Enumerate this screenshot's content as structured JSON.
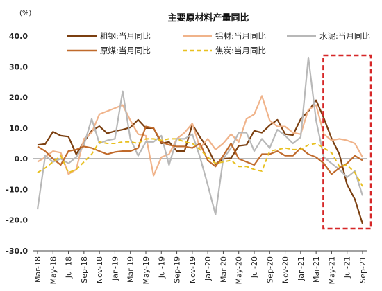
{
  "chart_data": {
    "type": "line",
    "title": "主要原材料产量同比",
    "ylabel": "(%)",
    "xlabel": "",
    "ylim": [
      -30,
      40
    ],
    "yticks": [
      "40.0",
      "30.0",
      "20.0",
      "10.0",
      "0.0",
      "-10.0",
      "-20.0",
      "-30.0"
    ],
    "ytick_values": [
      40,
      30,
      20,
      10,
      0,
      -10,
      -20,
      -30
    ],
    "x": [
      "Mar-18",
      "Apr-18",
      "May-18",
      "Jun-18",
      "Jul-18",
      "Aug-18",
      "Sep-18",
      "Oct-18",
      "Nov-18",
      "Dec-18",
      "Jan-19",
      "Feb-19",
      "Mar-19",
      "Apr-19",
      "May-19",
      "Jun-19",
      "Jul-19",
      "Aug-19",
      "Sep-19",
      "Oct-19",
      "Nov-19",
      "Dec-19",
      "Jan-20",
      "Feb-20",
      "Mar-20",
      "Apr-20",
      "May-20",
      "Jun-20",
      "Jul-20",
      "Aug-20",
      "Sep-20",
      "Oct-20",
      "Nov-20",
      "Dec-20",
      "Jan-21",
      "Feb-21",
      "Mar-21",
      "Apr-21",
      "May-21",
      "Jun-21",
      "Jul-21",
      "Aug-21",
      "Sep-21"
    ],
    "xtick_labels": [
      "Mar-18",
      "May-18",
      "Jul-18",
      "Sep-18",
      "Nov-18",
      "Jan-19",
      "Mar-19",
      "May-19",
      "Jul-19",
      "Sep-19",
      "Nov-19",
      "Jan-20",
      "Mar-20",
      "May-20",
      "Jul-20",
      "Sep-20",
      "Nov-20",
      "Jan-21",
      "Mar-21",
      "May-21",
      "Jul-21",
      "Sep-21"
    ],
    "grid": false,
    "legend_position": "top",
    "series": [
      {
        "name": "粗钢:当月同比",
        "color": "#7b3f10",
        "dash": false,
        "values": [
          4.5,
          4.8,
          8.8,
          7.5,
          7.2,
          1.5,
          5.5,
          9.1,
          10.6,
          8.3,
          9.0,
          9.5,
          10.2,
          12.7,
          10.0,
          10.0,
          5.0,
          5.5,
          2.5,
          2.5,
          11.2,
          7.0,
          3.5,
          -1.7,
          0.0,
          0.2,
          4.2,
          4.5,
          9.1,
          8.5,
          10.9,
          12.7,
          8.0,
          7.7,
          12.9,
          15.5,
          19.1,
          13.2,
          6.6,
          1.5,
          -8.4,
          -13.2,
          -21.2
        ]
      },
      {
        "name": "铝材:当月同比",
        "color": "#f0b38a",
        "dash": false,
        "values": [
          -1.0,
          0.5,
          2.5,
          2.0,
          -5.0,
          -3.5,
          6.5,
          8.5,
          14.5,
          15.5,
          16.5,
          17.5,
          12.5,
          8.0,
          7.5,
          -5.5,
          0.5,
          1.5,
          6.5,
          8.5,
          11.5,
          3.5,
          6.5,
          3.0,
          5.0,
          8.0,
          5.5,
          13.0,
          14.5,
          20.5,
          12.5,
          10.5,
          10.5,
          8.5,
          8.0,
          16.0,
          17.5,
          8.0,
          6.0,
          6.5,
          6.0,
          5.0,
          0.5
        ]
      },
      {
        "name": "水泥:当月同比",
        "color": "#b8b8b8",
        "dash": false,
        "values": [
          -16.5,
          1.0,
          -1.0,
          0.0,
          -1.5,
          0.5,
          4.5,
          13.0,
          5.0,
          6.0,
          6.5,
          22.0,
          6.5,
          1.0,
          5.5,
          5.5,
          7.5,
          -2.0,
          6.5,
          6.5,
          8.0,
          0.5,
          -8.5,
          -18.2,
          0.0,
          3.5,
          8.5,
          8.5,
          2.5,
          6.5,
          3.5,
          9.5,
          7.5,
          5.0,
          7.0,
          33.0,
          12.5,
          0.5,
          -1.5,
          -3.5,
          -6.0,
          -4.0,
          -12.0
        ]
      },
      {
        "name": "原煤:当月同比",
        "color": "#c06a2b",
        "dash": false,
        "values": [
          4.0,
          2.5,
          0.0,
          -2.0,
          2.5,
          3.0,
          4.0,
          3.5,
          2.5,
          1.5,
          2.2,
          2.5,
          2.5,
          3.5,
          10.5,
          10.0,
          5.5,
          4.5,
          4.0,
          4.0,
          3.5,
          5.0,
          -0.5,
          -2.5,
          1.0,
          5.0,
          0.0,
          -1.0,
          -2.0,
          1.5,
          1.5,
          2.5,
          1.0,
          1.0,
          3.5,
          1.5,
          0.5,
          -1.5,
          -5.0,
          -3.0,
          -1.5,
          1.0,
          -0.5
        ]
      },
      {
        "name": "焦炭:当月同比",
        "color": "#e8c020",
        "dash": true,
        "values": [
          -4.5,
          -3.0,
          -1.0,
          1.0,
          -4.5,
          -3.5,
          -1.0,
          1.5,
          5.5,
          5.0,
          5.0,
          5.5,
          5.5,
          5.0,
          6.5,
          6.5,
          6.0,
          6.5,
          6.5,
          5.5,
          5.0,
          3.0,
          0.5,
          -1.5,
          -1.0,
          -0.5,
          -2.5,
          -2.5,
          -3.5,
          -4.0,
          2.5,
          3.0,
          3.5,
          3.0,
          3.0,
          4.5,
          5.0,
          3.5,
          2.0,
          -2.5,
          -2.0,
          -4.5,
          -9.0
        ]
      }
    ],
    "highlight_box": {
      "from": "May-21",
      "to": "Sep-21",
      "color": "#d62728"
    }
  }
}
